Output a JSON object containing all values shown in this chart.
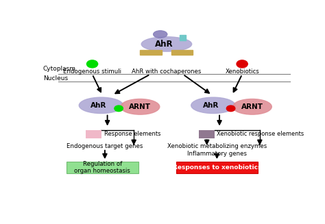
{
  "bg_color": "#ffffff",
  "cytoplasm_label": "Cytoplasm",
  "nucleus_label": "Nucleus",
  "endogenous_label": "Endogenous stimuli",
  "ahr_cochaperones_label": "AhR with cochaperones",
  "xenobiotics_label": "Xenobiotics",
  "top_ahr_label": "AhR",
  "top_ahr_color": "#b0aad5",
  "top_small_oval_color": "#8880bb",
  "top_rect_color": "#c8a84b",
  "top_teal_color": "#70c8c8",
  "endogenous_circle_color": "#00dd00",
  "xenobiotics_circle_color": "#dd0000",
  "left_ahr_color": "#b0aad5",
  "left_arnt_color": "#e09098",
  "left_dot_color": "#00dd00",
  "right_ahr_color": "#b0aad5",
  "right_arnt_color": "#e09098",
  "right_dot_color": "#dd0000",
  "left_resp_box_color": "#f0b8c8",
  "right_resp_box_color": "#907890",
  "left_final_box_color": "#90e090",
  "right_final_box_color": "#ee1111",
  "response_elements_label": "Response elements",
  "endogenous_target_label": "Endogenous target genes",
  "regulation_label": "Regulation of\norgan homeostasis",
  "xenobiotic_response_label": "Xenobiotic response elements",
  "xenobiotic_metabolizing_label": "Xenobiotic metabolizing enzymes\nInflammatory genes",
  "responses_xenobiotics_label": "Responses to xenobiotics"
}
